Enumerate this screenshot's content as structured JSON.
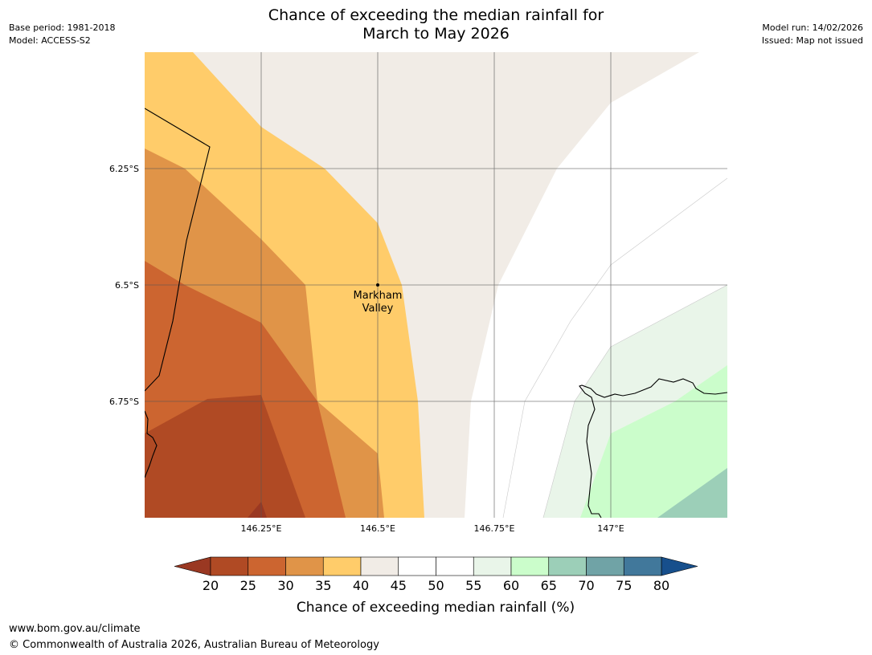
{
  "header": {
    "title_line1": "Chance of exceeding the median rainfall for",
    "title_line2": "March to May 2026",
    "base_period": "Base period: 1981-2018",
    "model": "Model: ACCESS-S2",
    "model_run": "Model run: 14/02/2026",
    "issued": "Issued: Map not issued"
  },
  "map": {
    "lat_labels": [
      "6.25°S",
      "6.5°S",
      "6.75°S"
    ],
    "lon_labels": [
      "146.25°E",
      "146.5°E",
      "146.75°E",
      "147°E"
    ],
    "place": {
      "name_line1": "Markham",
      "name_line2": "Valley"
    }
  },
  "colorbar": {
    "ticks": [
      "20",
      "25",
      "30",
      "35",
      "40",
      "45",
      "50",
      "55",
      "60",
      "65",
      "70",
      "75",
      "80"
    ],
    "colors": [
      "#b04a24",
      "#cc6530",
      "#e09448",
      "#ffcc6a",
      "#f1ece6",
      "#ffffff",
      "#ffffff",
      "#e9f5e9",
      "#cbfdcb",
      "#9ccfb8",
      "#70a3a6",
      "#41789b"
    ],
    "under_color": "#9a3822",
    "over_color": "#174f8c",
    "label": "Chance of exceeding median rainfall (%)"
  },
  "footer": {
    "url": "www.bom.gov.au/climate",
    "copyright": "© Commonwealth of Australia 2026, Australian Bureau of Meteorology"
  }
}
